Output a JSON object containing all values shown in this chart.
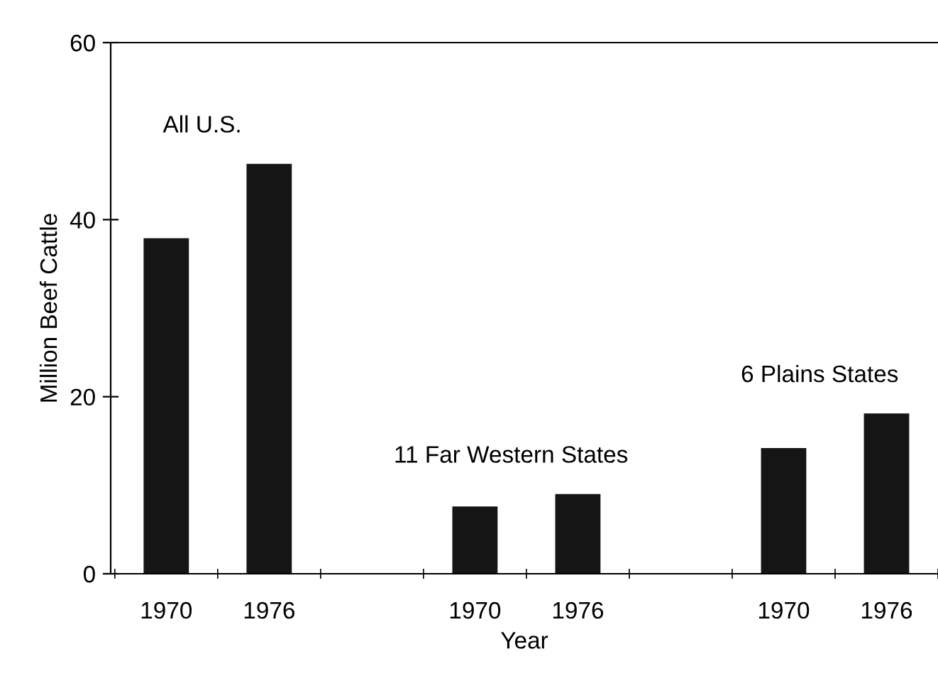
{
  "chart_data": {
    "type": "bar",
    "xlabel": "Year",
    "ylabel": "Million Beef Cattle",
    "categories": [
      "1970",
      "1976",
      null,
      "1970",
      "1976",
      null,
      "1970",
      "1976"
    ],
    "values": [
      37.9,
      46.3,
      null,
      7.6,
      9.0,
      null,
      14.2,
      18.1
    ],
    "color": "#151515",
    "ylim": [
      0,
      60
    ],
    "yticks": [
      0,
      20,
      40,
      60
    ],
    "annotations": [
      "All U.S.",
      "11 Far Western States",
      "6 Plains States"
    ]
  }
}
